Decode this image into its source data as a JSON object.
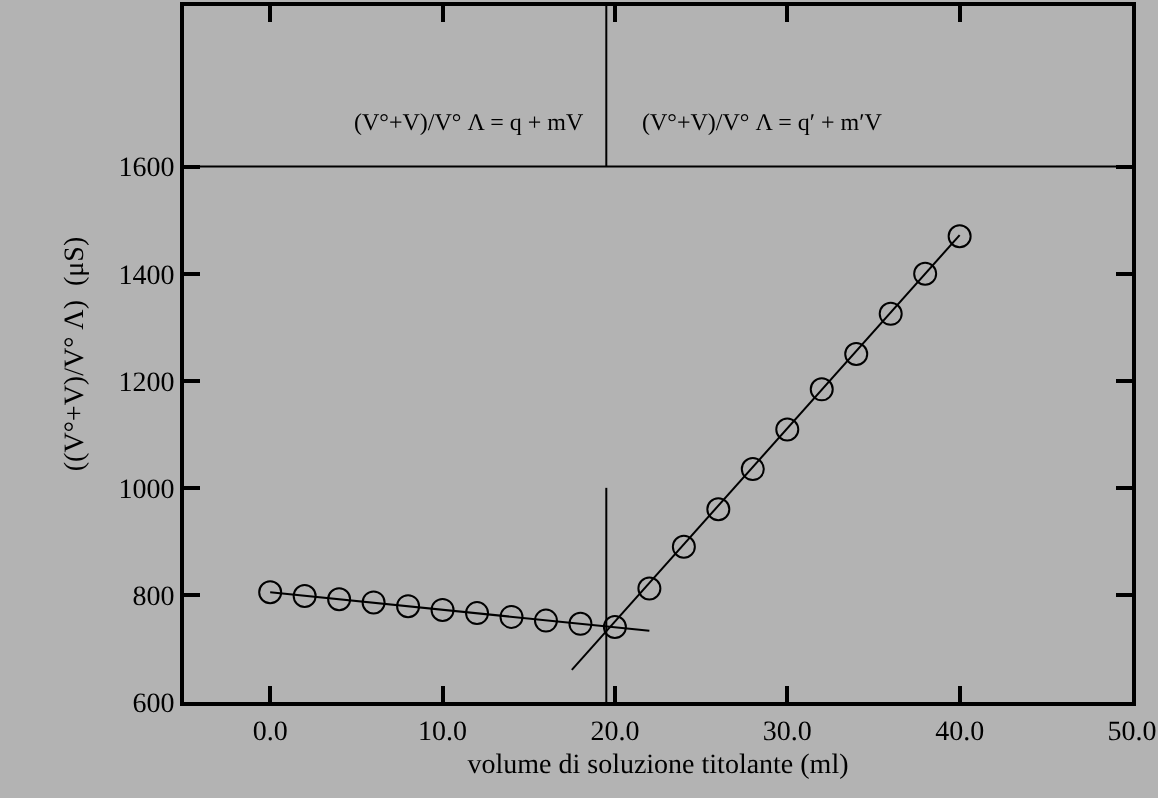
{
  "chart_data": {
    "type": "scatter",
    "xlabel": "volume di soluzione titolante (ml)",
    "ylabel": "((V°+V)/V° Λ)  (μS)",
    "annotations": [
      "(V°+V)/V° Λ = q + mV",
      "(V°+V)/V° Λ = q′ + m′V"
    ],
    "xlim": [
      -5,
      50
    ],
    "ylim": [
      600,
      1900
    ],
    "xticks": [
      {
        "value": 0,
        "label": "0.0"
      },
      {
        "value": 10,
        "label": "10.0"
      },
      {
        "value": 20,
        "label": "20.0"
      },
      {
        "value": 30,
        "label": "30.0"
      },
      {
        "value": 40,
        "label": "40.0"
      },
      {
        "value": 50,
        "label": "50.0"
      }
    ],
    "yticks": [
      600,
      800,
      1000,
      1200,
      1400,
      1600
    ],
    "ref_lines": [
      {
        "axis": "y",
        "value": 1600,
        "color": "#000000"
      }
    ],
    "series": [
      {
        "type": "scatter",
        "marker": "circle",
        "color": "#000000",
        "x": [
          0,
          2,
          4,
          6,
          8,
          10,
          12,
          14,
          16,
          18,
          20,
          22,
          24,
          26,
          28,
          30,
          32,
          34,
          36,
          38,
          40
        ],
        "values": [
          805,
          798,
          792,
          786,
          779,
          772,
          766,
          759,
          752,
          746,
          740,
          812,
          890,
          960,
          1035,
          1109,
          1184,
          1250,
          1325,
          1400,
          1470
        ]
      },
      {
        "type": "line",
        "marker": "none",
        "color": "#000000",
        "x": [
          0,
          22
        ],
        "values": [
          805,
          733
        ]
      },
      {
        "type": "line",
        "marker": "none",
        "color": "#000000",
        "x": [
          17.5,
          40
        ],
        "values": [
          660,
          1472
        ]
      },
      {
        "type": "line",
        "marker": "none",
        "color": "#000000",
        "x": [
          19.5,
          19.5
        ],
        "values": [
          600,
          1000
        ]
      },
      {
        "type": "line",
        "marker": "none",
        "color": "#000000",
        "x": [
          19.5,
          19.5
        ],
        "values": [
          1600,
          1900
        ]
      }
    ]
  }
}
